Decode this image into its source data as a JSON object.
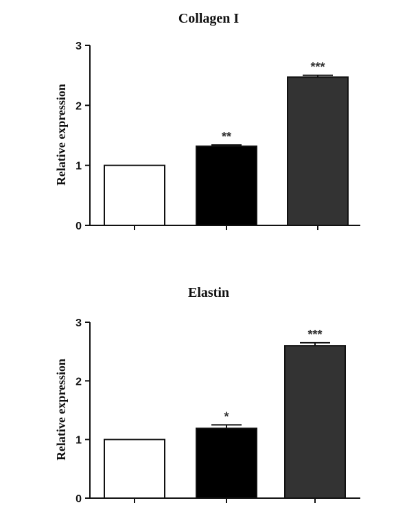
{
  "chart_data": [
    {
      "type": "bar",
      "title": "Collagen I",
      "ylabel": "Relative expression",
      "xlabel": "",
      "ylim": [
        0,
        3
      ],
      "yticks": [
        "0",
        "1",
        "2",
        "3"
      ],
      "values": [
        1.0,
        1.32,
        2.47
      ],
      "errors": [
        0.0,
        0.02,
        0.03
      ],
      "significance": [
        "",
        "**",
        "***"
      ],
      "colors": [
        "#ffffff",
        "#000000",
        "#333333"
      ],
      "grid": false
    },
    {
      "type": "bar",
      "title": "Elastin",
      "ylabel": "Relative expression",
      "xlabel": "",
      "ylim": [
        0,
        3
      ],
      "yticks": [
        "0",
        "1",
        "2",
        "3"
      ],
      "values": [
        1.0,
        1.19,
        2.6
      ],
      "errors": [
        0.0,
        0.06,
        0.05
      ],
      "significance": [
        "",
        "*",
        "***"
      ],
      "colors": [
        "#ffffff",
        "#000000",
        "#333333"
      ],
      "grid": false
    }
  ]
}
